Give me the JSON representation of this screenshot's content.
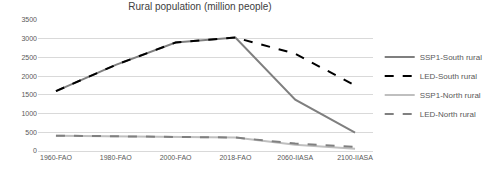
{
  "chart_data": {
    "type": "line",
    "title": "Rural population (million people)",
    "categories": [
      "1960-FAO",
      "1980-FAO",
      "2000-FAO",
      "2018-FAO",
      "2060-IIASA",
      "2100-IIASA"
    ],
    "series": [
      {
        "name": "SSP1-South rural",
        "color": "#7f7f7f",
        "line_style": "solid",
        "values": [
          1600,
          2300,
          2900,
          3030,
          1370,
          490
        ]
      },
      {
        "name": "LED-South rural",
        "color": "#000000",
        "line_style": "dash",
        "values": [
          1600,
          2300,
          2900,
          3030,
          2600,
          1750
        ]
      },
      {
        "name": "SSP1-North rural",
        "color": "#bfbfbf",
        "line_style": "solid",
        "values": [
          410,
          400,
          370,
          360,
          170,
          60
        ]
      },
      {
        "name": "LED-North rural",
        "color": "#808080",
        "line_style": "dash",
        "values": [
          410,
          400,
          370,
          360,
          200,
          110
        ]
      }
    ],
    "ylim": [
      0,
      3500
    ],
    "yticks": [
      0,
      500,
      1000,
      1500,
      2000,
      2500,
      3000,
      3500
    ],
    "grid": true,
    "legend": "right"
  }
}
